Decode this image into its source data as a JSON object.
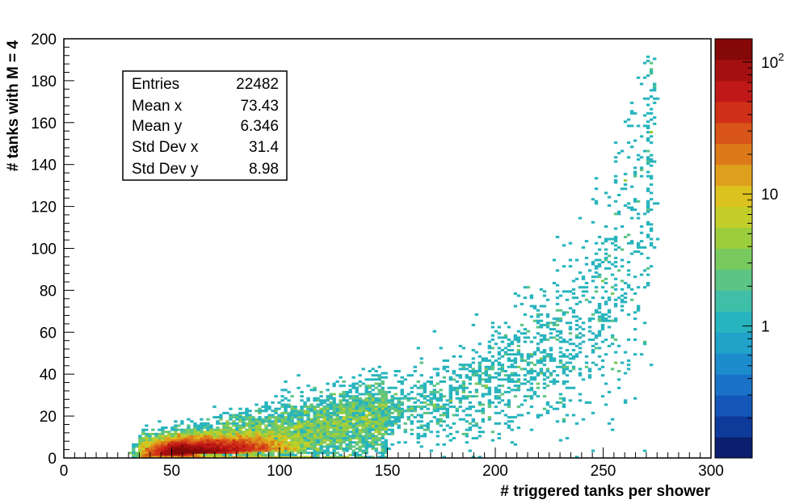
{
  "chart_data": {
    "type": "heatmap",
    "title": "",
    "xlabel": "# triggered tanks per shower",
    "ylabel": "# tanks with M = 4",
    "xlim": [
      0,
      300
    ],
    "ylim": [
      0,
      200
    ],
    "x_ticks": [
      "0",
      "50",
      "100",
      "150",
      "200",
      "250",
      "300"
    ],
    "y_ticks": [
      "0",
      "20",
      "40",
      "60",
      "80",
      "100",
      "120",
      "140",
      "160",
      "180",
      "200"
    ],
    "colorbar": {
      "scale": "log",
      "range": [
        0.1,
        150
      ],
      "labels": [
        {
          "base": "1",
          "exp": ""
        },
        {
          "base": "10",
          "exp": ""
        },
        {
          "base": "10",
          "exp": "2"
        }
      ]
    },
    "stats": [
      {
        "label": "Entries",
        "value": "22482"
      },
      {
        "label": "Mean x",
        "value": "73.43"
      },
      {
        "label": "Mean y",
        "value": "6.346"
      },
      {
        "label": "Std Dev x",
        "value": "31.4"
      },
      {
        "label": "Std Dev y",
        "value": "8.98"
      }
    ],
    "palette": [
      "#0b1f6e",
      "#0e3a9a",
      "#1456b8",
      "#1a72c8",
      "#1d8ccc",
      "#20a2c9",
      "#28b4be",
      "#40bfa8",
      "#5cc485",
      "#78c95e",
      "#9ccd3c",
      "#c3cf28",
      "#dcc21e",
      "#dea01c",
      "#dc7a1a",
      "#d85418",
      "#d03018",
      "#c01818",
      "#a41010",
      "#840808"
    ],
    "density": {
      "description_free_model": true,
      "peak": {
        "x": 57,
        "y": 3,
        "count": 150
      },
      "trend": [
        {
          "x": 35,
          "y": 4
        },
        {
          "x": 60,
          "y": 5
        },
        {
          "x": 100,
          "y": 10
        },
        {
          "x": 150,
          "y": 20
        },
        {
          "x": 200,
          "y": 35
        },
        {
          "x": 240,
          "y": 60
        },
        {
          "x": 265,
          "y": 110
        },
        {
          "x": 275,
          "y": 190
        }
      ]
    }
  }
}
